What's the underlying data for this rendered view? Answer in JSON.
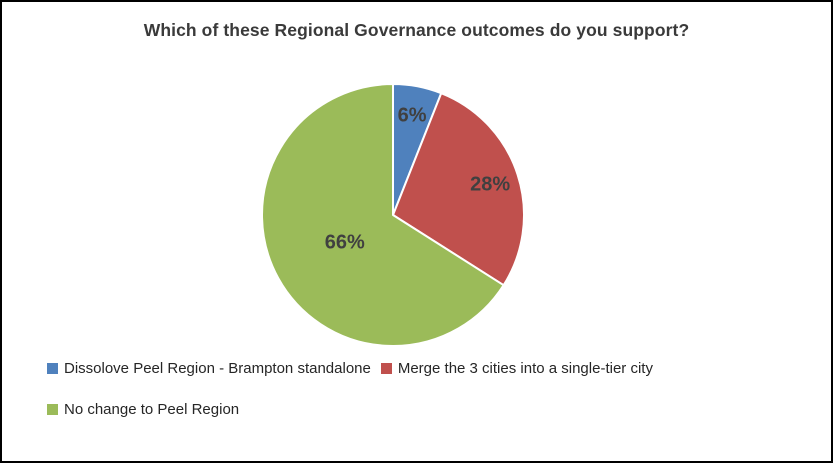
{
  "chart_data": {
    "type": "pie",
    "title": "Which of these Regional Governance outcomes do you support?",
    "slices": [
      {
        "label": "Dissolove Peel Region - Brampton standalone",
        "value": 6,
        "data_label": "6%",
        "color": "#4F81BD"
      },
      {
        "label": "Merge the 3 cities into a single-tier city",
        "value": 28,
        "data_label": "28%",
        "color": "#C0504D"
      },
      {
        "label": "No change to Peel Region",
        "value": 66,
        "data_label": "66%",
        "color": "#9BBB59"
      }
    ],
    "start_angle_deg": 0,
    "direction": "clockwise",
    "legend_position": "bottom",
    "label_radius_fractions": [
      0.78,
      0.78,
      0.42
    ],
    "slice_border_color": "#ffffff"
  }
}
